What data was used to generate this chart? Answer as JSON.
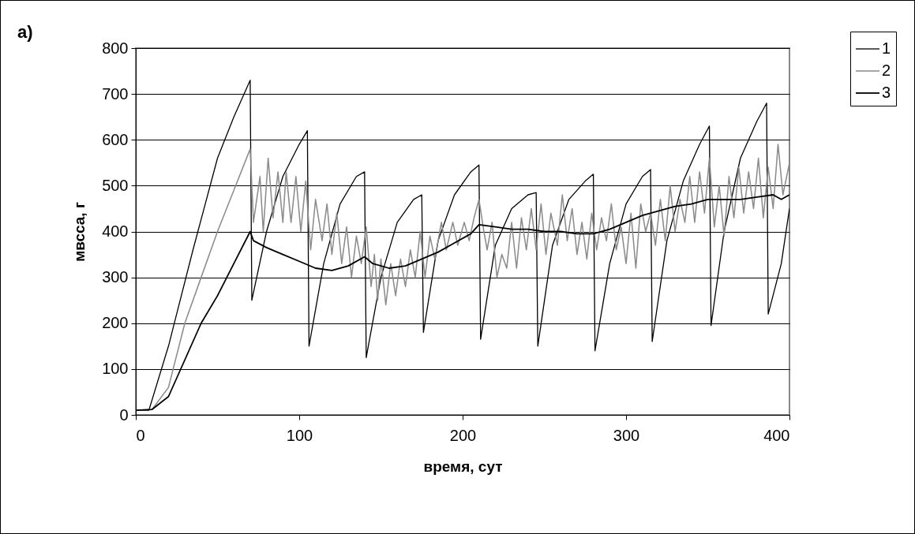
{
  "chart_data": {
    "type": "line",
    "xlabel": "время, сут",
    "ylabel": "мвсса, г",
    "annotations": [
      "а)"
    ],
    "xlim": [
      0,
      400
    ],
    "xticks": [
      0,
      100,
      200,
      300,
      400
    ],
    "ylim": [
      0,
      800
    ],
    "yticks": [
      0,
      100,
      200,
      300,
      400,
      500,
      600,
      700,
      800
    ],
    "grid": "y",
    "legend": "top right",
    "line_style": "solid",
    "marker": "none",
    "series": [
      {
        "name": "1",
        "color": "#000000",
        "x": [
          0,
          8,
          20,
          35,
          50,
          60,
          70,
          71,
          80,
          90,
          100,
          105,
          106,
          115,
          125,
          135,
          140,
          141,
          150,
          160,
          170,
          175,
          176,
          185,
          195,
          205,
          210,
          211,
          220,
          230,
          240,
          245,
          246,
          255,
          265,
          275,
          280,
          281,
          290,
          300,
          310,
          315,
          316,
          325,
          335,
          345,
          351,
          352,
          360,
          370,
          380,
          386,
          387,
          395,
          400
        ],
        "values": [
          10,
          10,
          150,
          360,
          560,
          650,
          730,
          250,
          400,
          520,
          590,
          620,
          150,
          330,
          460,
          520,
          530,
          125,
          300,
          420,
          470,
          480,
          180,
          380,
          480,
          530,
          545,
          165,
          370,
          450,
          480,
          485,
          150,
          370,
          470,
          510,
          525,
          140,
          330,
          460,
          520,
          535,
          160,
          380,
          510,
          590,
          630,
          195,
          400,
          560,
          640,
          680,
          220,
          330,
          450
        ]
      },
      {
        "name": "2",
        "color": "#8c8c8c",
        "x": [
          0,
          10,
          20,
          30,
          40,
          50,
          60,
          70,
          72,
          76,
          78,
          81,
          84,
          87,
          90,
          92,
          95,
          98,
          101,
          104,
          107,
          110,
          114,
          117,
          120,
          123,
          126,
          129,
          132,
          135,
          138,
          141,
          144,
          146,
          148,
          150,
          153,
          156,
          159,
          162,
          165,
          168,
          171,
          174,
          177,
          180,
          183,
          187,
          190,
          194,
          197,
          201,
          204,
          207,
          210,
          213,
          215,
          218,
          221,
          224,
          227,
          230,
          233,
          236,
          239,
          242,
          245,
          248,
          251,
          254,
          258,
          261,
          264,
          267,
          270,
          273,
          276,
          279,
          282,
          285,
          288,
          291,
          294,
          297,
          300,
          303,
          306,
          309,
          312,
          315,
          318,
          321,
          324,
          327,
          330,
          333,
          336,
          339,
          342,
          345,
          348,
          351,
          354,
          357,
          360,
          363,
          366,
          369,
          372,
          375,
          378,
          381,
          384,
          387,
          390,
          393,
          396,
          400
        ],
        "values": [
          10,
          12,
          60,
          200,
          300,
          400,
          490,
          580,
          420,
          520,
          400,
          560,
          430,
          530,
          420,
          530,
          420,
          520,
          400,
          510,
          360,
          470,
          380,
          460,
          350,
          440,
          330,
          410,
          300,
          390,
          330,
          410,
          280,
          350,
          250,
          340,
          240,
          330,
          260,
          340,
          280,
          360,
          300,
          400,
          300,
          390,
          340,
          420,
          360,
          420,
          370,
          420,
          380,
          430,
          470,
          400,
          360,
          420,
          300,
          350,
          320,
          420,
          320,
          430,
          360,
          450,
          360,
          460,
          350,
          440,
          370,
          480,
          380,
          450,
          350,
          420,
          340,
          440,
          360,
          430,
          380,
          460,
          360,
          410,
          330,
          440,
          320,
          460,
          400,
          440,
          370,
          470,
          380,
          500,
          400,
          470,
          420,
          520,
          420,
          530,
          440,
          560,
          410,
          500,
          390,
          520,
          430,
          540,
          440,
          530,
          450,
          560,
          430,
          540,
          450,
          590,
          480,
          550
        ]
      },
      {
        "name": "3",
        "color": "#000000",
        "x": [
          0,
          10,
          20,
          30,
          40,
          50,
          60,
          70,
          72,
          80,
          90,
          100,
          110,
          120,
          130,
          140,
          145,
          155,
          165,
          175,
          185,
          195,
          205,
          210,
          220,
          230,
          240,
          250,
          260,
          270,
          280,
          290,
          300,
          310,
          320,
          330,
          340,
          350,
          360,
          370,
          380,
          390,
          395,
          400
        ],
        "values": [
          10,
          12,
          40,
          120,
          200,
          260,
          330,
          400,
          380,
          365,
          350,
          335,
          320,
          315,
          325,
          345,
          330,
          320,
          325,
          340,
          355,
          375,
          395,
          415,
          410,
          405,
          405,
          400,
          400,
          395,
          395,
          405,
          420,
          435,
          445,
          455,
          460,
          470,
          470,
          470,
          475,
          480,
          470,
          480
        ]
      }
    ]
  }
}
